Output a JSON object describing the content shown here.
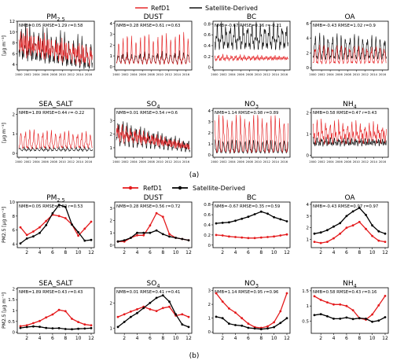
{
  "legend_top": [
    {
      "label": "RefD1",
      "color": "#e41a1c"
    },
    {
      "label": "Satellite-Derived",
      "color": "#000000"
    }
  ],
  "legend_bottom": [
    {
      "label": "RefD1",
      "color": "#e41a1c"
    },
    {
      "label": "Satellite-Derived",
      "color": "#000000"
    }
  ],
  "captions": {
    "a": "(a)",
    "b": "(b)"
  },
  "ylabel_html_unit": "[μg m⁻³]",
  "colors": {
    "refd1": "#e41a1c",
    "sat": "#000000"
  },
  "chart_data": [
    {
      "panel": "a",
      "type": "line",
      "title": "PM2.5",
      "stats": "NMB=0.05   RMSE=1.29   r=0.58",
      "ylabel": "[μg m⁻³]",
      "ylim": [
        3,
        12
      ],
      "yticks": [
        4,
        6,
        8,
        10,
        12
      ],
      "xticks": [
        "2000",
        "2002",
        "2004",
        "2006",
        "2008",
        "2010",
        "2012",
        "2014",
        "2016"
      ]
    },
    {
      "panel": "a",
      "type": "line",
      "title": "DUST",
      "stats": "NMB=0.28   RMSE=0.61   r=0.63",
      "ylim": [
        -0.3,
        4.2
      ],
      "yticks": [
        0,
        1,
        2,
        3,
        4
      ],
      "xticks": [
        "2000",
        "2002",
        "2004",
        "2006",
        "2008",
        "2010",
        "2012",
        "2014",
        "2016"
      ]
    },
    {
      "panel": "a",
      "type": "line",
      "title": "BC",
      "stats": "NMB=-0.67   RMSE=0.36   r=-0.21",
      "ylim": [
        -0.05,
        0.85
      ],
      "yticks": [
        0.0,
        0.2,
        0.4,
        0.6,
        0.8
      ],
      "xticks": [
        "2000",
        "2002",
        "2004",
        "2006",
        "2008",
        "2010",
        "2012",
        "2014",
        "2016"
      ]
    },
    {
      "panel": "a",
      "type": "line",
      "title": "OA",
      "stats": "NMB=-0.43   RMSE=1.02   r=0.9",
      "ylim": [
        -0.3,
        6.3
      ],
      "yticks": [
        0,
        2,
        4,
        6
      ],
      "xticks": [
        "2000",
        "2002",
        "2004",
        "2006",
        "2008",
        "2010",
        "2012",
        "2014",
        "2016"
      ]
    },
    {
      "panel": "a",
      "type": "line",
      "title": "SEA_SALT",
      "stats": "NMB=1.89   RMSE=0.44   r=-0.22",
      "ylabel": "[μg m⁻³]",
      "ylim": [
        -0.2,
        2.3
      ],
      "yticks": [
        0,
        1,
        2
      ],
      "xticks": [
        "2000",
        "2002",
        "2004",
        "2006",
        "2008",
        "2010",
        "2012",
        "2014",
        "2016"
      ]
    },
    {
      "panel": "a",
      "type": "line",
      "title": "SO4",
      "stats": "NMB=0.01   RMSE=0.54   r=0.6",
      "ylim": [
        0.3,
        3.9
      ],
      "yticks": [
        1,
        2,
        3
      ],
      "xticks": [
        "2000",
        "2002",
        "2004",
        "2006",
        "2008",
        "2010",
        "2012",
        "2014",
        "2016"
      ]
    },
    {
      "panel": "a",
      "type": "line",
      "title": "NO3",
      "stats": "NMB=1.14   RMSE=0.98   r=0.89",
      "ylim": [
        -0.2,
        4.2
      ],
      "yticks": [
        0,
        1,
        2,
        3,
        4
      ],
      "xticks": [
        "2000",
        "2002",
        "2004",
        "2006",
        "2008",
        "2010",
        "2012",
        "2014",
        "2016"
      ]
    },
    {
      "panel": "a",
      "type": "line",
      "title": "NH4",
      "stats": "NMB=0.58   RMSE=0.47   r=0.43",
      "ylim": [
        -0.1,
        2.2
      ],
      "yticks": [
        0,
        1,
        2
      ],
      "xticks": [
        "2000",
        "2002",
        "2004",
        "2006",
        "2008",
        "2010",
        "2012",
        "2014",
        "2016"
      ]
    },
    {
      "panel": "b",
      "type": "line",
      "title": "PM2.5",
      "stats": "NMB=0.05   RMSE=1.02   r=0.53",
      "ylabel": "PM2.5 [μg m⁻³]",
      "ylim": [
        3.5,
        10
      ],
      "yticks": [
        4,
        6,
        8,
        10
      ],
      "x": [
        1,
        2,
        3,
        4,
        5,
        6,
        7,
        8,
        9,
        10,
        11,
        12
      ],
      "xticks": [
        2,
        4,
        6,
        8,
        10,
        12
      ],
      "series": [
        {
          "name": "RefD1",
          "values": [
            6.4,
            5.3,
            5.8,
            6.4,
            7.3,
            8.2,
            8.0,
            7.7,
            6.8,
            5.2,
            6.2,
            7.2
          ]
        },
        {
          "name": "Satellite-Derived",
          "values": [
            4.1,
            4.8,
            5.1,
            5.6,
            6.7,
            8.4,
            9.6,
            9.3,
            6.8,
            5.7,
            4.5,
            4.6
          ]
        }
      ]
    },
    {
      "panel": "b",
      "type": "line",
      "title": "DUST",
      "stats": "NMB=0.28   RMSE=0.56   r=0.72",
      "ylim": [
        -0.2,
        3.5
      ],
      "yticks": [
        0,
        1,
        2,
        3
      ],
      "x": [
        1,
        2,
        3,
        4,
        5,
        6,
        7,
        8,
        9,
        10,
        11,
        12
      ],
      "xticks": [
        2,
        4,
        6,
        8,
        10,
        12
      ],
      "series": [
        {
          "name": "RefD1",
          "values": [
            0.3,
            0.3,
            0.6,
            0.8,
            0.8,
            1.6,
            2.6,
            2.3,
            0.9,
            0.6,
            0.5,
            0.4
          ]
        },
        {
          "name": "Satellite-Derived",
          "values": [
            0.3,
            0.4,
            0.6,
            1.0,
            1.0,
            1.0,
            1.2,
            0.9,
            0.7,
            0.6,
            0.5,
            0.4
          ]
        }
      ]
    },
    {
      "panel": "b",
      "type": "line",
      "title": "BC",
      "stats": "NMB=-0.67   RMSE=0.35   r=0.59",
      "ylim": [
        -0.05,
        0.85
      ],
      "yticks": [
        0.0,
        0.2,
        0.4,
        0.6,
        0.8
      ],
      "x": [
        1,
        2,
        3,
        4,
        5,
        6,
        7,
        8,
        9,
        10,
        11,
        12
      ],
      "xticks": [
        2,
        4,
        6,
        8,
        10,
        12
      ],
      "series": [
        {
          "name": "RefD1",
          "values": [
            0.2,
            0.19,
            0.17,
            0.16,
            0.15,
            0.14,
            0.14,
            0.15,
            0.16,
            0.17,
            0.19,
            0.21
          ]
        },
        {
          "name": "Satellite-Derived",
          "values": [
            0.43,
            0.44,
            0.45,
            0.48,
            0.52,
            0.56,
            0.61,
            0.66,
            0.62,
            0.55,
            0.51,
            0.47
          ]
        }
      ]
    },
    {
      "panel": "b",
      "type": "line",
      "title": "OA",
      "stats": "NMB=-0.43   RMSE=0.97   r=0.97",
      "ylim": [
        0.3,
        4.2
      ],
      "yticks": [
        1,
        2,
        3,
        4
      ],
      "x": [
        1,
        2,
        3,
        4,
        5,
        6,
        7,
        8,
        9,
        10,
        11,
        12
      ],
      "xticks": [
        2,
        4,
        6,
        8,
        10,
        12
      ],
      "series": [
        {
          "name": "RefD1",
          "values": [
            0.8,
            0.7,
            0.8,
            1.1,
            1.5,
            2.0,
            2.2,
            2.5,
            1.9,
            1.3,
            0.9,
            0.8
          ]
        },
        {
          "name": "Satellite-Derived",
          "values": [
            1.5,
            1.6,
            1.8,
            2.1,
            2.4,
            3.0,
            3.4,
            3.7,
            3.1,
            2.2,
            1.7,
            1.5
          ]
        }
      ]
    },
    {
      "panel": "b",
      "type": "line",
      "title": "SEA_SALT",
      "stats": "NMB=1.89   RMSE=0.43   r=0.43",
      "ylabel": "PM2.5 [μg m⁻³]",
      "ylim": [
        -0.05,
        2.05
      ],
      "yticks": [
        0.0,
        0.5,
        1.0,
        1.5,
        2.0
      ],
      "x": [
        1,
        2,
        3,
        4,
        5,
        6,
        7,
        8,
        9,
        10,
        11,
        12
      ],
      "xticks": [
        2,
        4,
        6,
        8,
        10,
        12
      ],
      "series": [
        {
          "name": "RefD1",
          "values": [
            0.28,
            0.32,
            0.42,
            0.52,
            0.68,
            0.82,
            1.03,
            0.97,
            0.62,
            0.47,
            0.36,
            0.32
          ]
        },
        {
          "name": "Satellite-Derived",
          "values": [
            0.2,
            0.24,
            0.27,
            0.25,
            0.2,
            0.18,
            0.19,
            0.15,
            0.14,
            0.16,
            0.17,
            0.19
          ]
        }
      ]
    },
    {
      "panel": "b",
      "type": "line",
      "title": "SO4",
      "stats": "NMB=0.01   RMSE=0.41   r=0.41",
      "ylim": [
        0.8,
        2.6
      ],
      "yticks": [
        1,
        2
      ],
      "x": [
        1,
        2,
        3,
        4,
        5,
        6,
        7,
        8,
        9,
        10,
        11,
        12
      ],
      "xticks": [
        2,
        4,
        6,
        8,
        10,
        12
      ],
      "series": [
        {
          "name": "RefD1",
          "values": [
            1.45,
            1.55,
            1.66,
            1.75,
            1.85,
            1.75,
            1.68,
            1.8,
            1.85,
            1.5,
            1.55,
            1.45
          ]
        },
        {
          "name": "Satellite-Derived",
          "values": [
            1.05,
            1.25,
            1.45,
            1.6,
            1.8,
            2.0,
            2.2,
            2.3,
            2.05,
            1.55,
            1.15,
            1.05
          ]
        }
      ]
    },
    {
      "panel": "b",
      "type": "line",
      "title": "NO3",
      "stats": "NMB=1.14   RMSE=0.95   r=0.96",
      "ylim": [
        -0.1,
        3.2
      ],
      "yticks": [
        0,
        1,
        2,
        3
      ],
      "x": [
        1,
        2,
        3,
        4,
        5,
        6,
        7,
        8,
        9,
        10,
        11,
        12
      ],
      "xticks": [
        2,
        4,
        6,
        8,
        10,
        12
      ],
      "series": [
        {
          "name": "RefD1",
          "values": [
            2.8,
            2.2,
            1.7,
            1.4,
            1.0,
            0.6,
            0.35,
            0.3,
            0.4,
            0.7,
            1.5,
            2.8
          ]
        },
        {
          "name": "Satellite-Derived",
          "values": [
            1.1,
            1.0,
            0.6,
            0.5,
            0.45,
            0.3,
            0.25,
            0.2,
            0.25,
            0.35,
            0.65,
            1.0
          ]
        }
      ]
    },
    {
      "panel": "b",
      "type": "line",
      "title": "NH4",
      "stats": "NMB=0.58   RMSE=0.43   r=0.16",
      "ylim": [
        0.1,
        1.6
      ],
      "yticks": [
        0.5,
        1.0,
        1.5
      ],
      "x": [
        1,
        2,
        3,
        4,
        5,
        6,
        7,
        8,
        9,
        10,
        11,
        12
      ],
      "xticks": [
        2,
        4,
        6,
        8,
        10,
        12
      ],
      "series": [
        {
          "name": "RefD1",
          "values": [
            1.32,
            1.2,
            1.12,
            1.05,
            1.05,
            1.0,
            0.86,
            0.6,
            0.55,
            0.72,
            1.02,
            1.33
          ]
        },
        {
          "name": "Satellite-Derived",
          "values": [
            0.7,
            0.73,
            0.66,
            0.58,
            0.58,
            0.62,
            0.57,
            0.6,
            0.58,
            0.48,
            0.52,
            0.63
          ]
        }
      ]
    }
  ]
}
